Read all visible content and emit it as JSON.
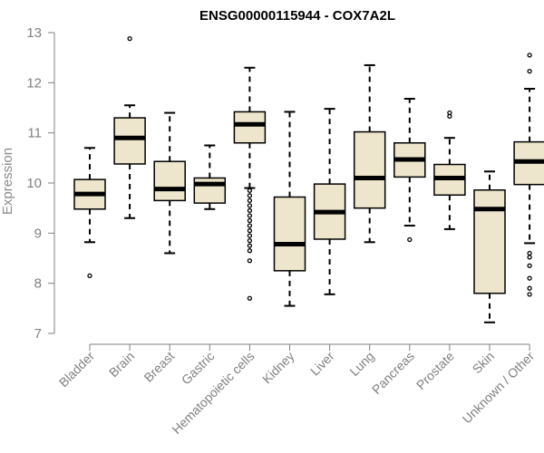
{
  "chart_data": {
    "type": "boxplot",
    "title": "ENSG00000115944 - COX7A2L",
    "xlabel": "",
    "ylabel": "Expression",
    "ylim": [
      7,
      13
    ],
    "yticks": [
      7,
      8,
      9,
      10,
      11,
      12,
      13
    ],
    "box_fill": "#ede6cc",
    "axis_color": "#808080",
    "categories": [
      "Bladder",
      "Brain",
      "Breast",
      "Gastric",
      "Hematopoietic cells",
      "Kidney",
      "Liver",
      "Lung",
      "Pancreas",
      "Prostate",
      "Skin",
      "Unknown / Other"
    ],
    "boxes": [
      {
        "name": "Bladder",
        "whisker_low": 8.82,
        "q1": 9.48,
        "median": 9.78,
        "q3": 10.07,
        "whisker_high": 10.7,
        "outliers": [
          8.15
        ]
      },
      {
        "name": "Brain",
        "whisker_low": 9.3,
        "q1": 10.38,
        "median": 10.9,
        "q3": 11.3,
        "whisker_high": 11.55,
        "outliers": [
          12.88
        ]
      },
      {
        "name": "Breast",
        "whisker_low": 8.6,
        "q1": 9.65,
        "median": 9.88,
        "q3": 10.43,
        "whisker_high": 11.4,
        "outliers": []
      },
      {
        "name": "Gastric",
        "whisker_low": 9.48,
        "q1": 9.6,
        "median": 9.98,
        "q3": 10.1,
        "whisker_high": 10.75,
        "outliers": []
      },
      {
        "name": "Hematopoietic cells",
        "whisker_low": 9.9,
        "q1": 10.8,
        "median": 11.17,
        "q3": 11.42,
        "whisker_high": 12.3,
        "outliers": [
          9.85,
          9.75,
          9.65,
          9.55,
          9.45,
          9.35,
          9.25,
          9.15,
          9.05,
          8.95,
          8.85,
          8.75,
          8.65,
          8.45,
          7.7
        ]
      },
      {
        "name": "Kidney",
        "whisker_low": 7.55,
        "q1": 8.25,
        "median": 8.78,
        "q3": 9.72,
        "whisker_high": 11.42,
        "outliers": []
      },
      {
        "name": "Liver",
        "whisker_low": 7.78,
        "q1": 8.88,
        "median": 9.42,
        "q3": 9.98,
        "whisker_high": 11.48,
        "outliers": []
      },
      {
        "name": "Lung",
        "whisker_low": 8.82,
        "q1": 9.5,
        "median": 10.1,
        "q3": 11.02,
        "whisker_high": 12.35,
        "outliers": []
      },
      {
        "name": "Pancreas",
        "whisker_low": 9.15,
        "q1": 10.12,
        "median": 10.47,
        "q3": 10.8,
        "whisker_high": 11.68,
        "outliers": [
          8.87
        ]
      },
      {
        "name": "Prostate",
        "whisker_low": 9.08,
        "q1": 9.76,
        "median": 10.1,
        "q3": 10.37,
        "whisker_high": 10.9,
        "outliers": [
          11.33,
          11.4
        ]
      },
      {
        "name": "Skin",
        "whisker_low": 7.22,
        "q1": 7.8,
        "median": 9.48,
        "q3": 9.86,
        "whisker_high": 10.23,
        "outliers": []
      },
      {
        "name": "Unknown / Other",
        "whisker_low": 8.8,
        "q1": 9.97,
        "median": 10.43,
        "q3": 10.82,
        "whisker_high": 11.88,
        "outliers": [
          12.55,
          12.23,
          8.6,
          8.52,
          8.35,
          8.1,
          7.9,
          7.78
        ]
      }
    ]
  }
}
